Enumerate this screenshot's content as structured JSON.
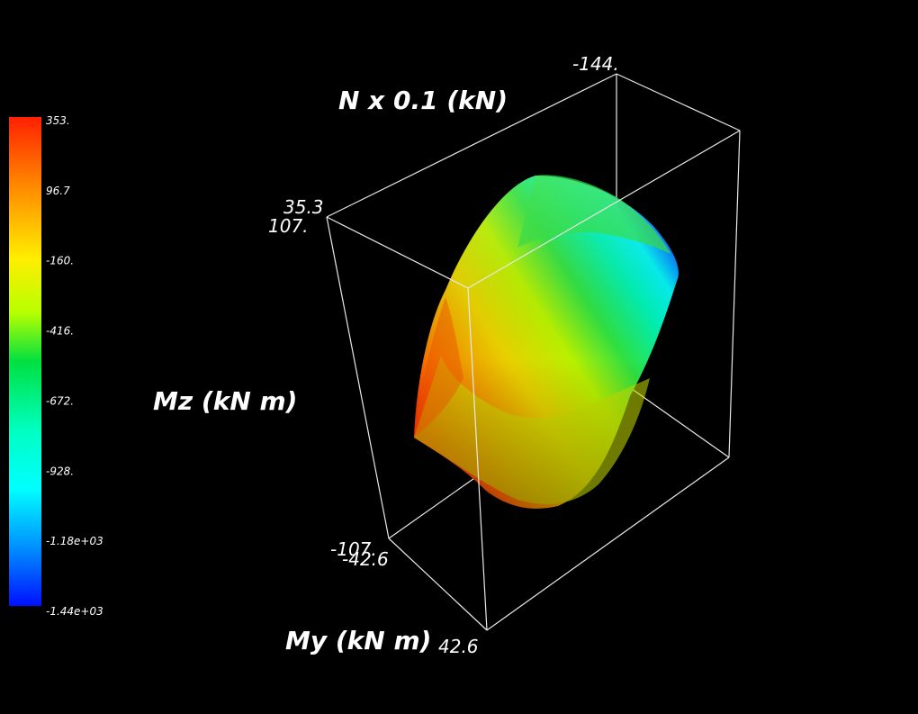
{
  "viewer": {
    "axes": {
      "n_title": "N x 0.1 (kN)",
      "mz_title": "Mz (kN m)",
      "my_title": "My (kN m)"
    },
    "ticks": {
      "n_min": "-144.",
      "n_max": "35.3",
      "mz_max": "107.",
      "mz_min": "-107.",
      "my_min": "-42.6",
      "my_max": "42.6"
    },
    "colorbar": {
      "labels": [
        "353.",
        "96.7",
        "-160.",
        "-416.",
        "-672.",
        "-928.",
        "-1.18e+03",
        "-1.44e+03"
      ],
      "colors": [
        "#ff2000",
        "#ff8800",
        "#ffee00",
        "#b8ff00",
        "#00e040",
        "#00ffc0",
        "#00ffff",
        "#0090ff",
        "#0010ff"
      ]
    },
    "background": "#000000"
  }
}
